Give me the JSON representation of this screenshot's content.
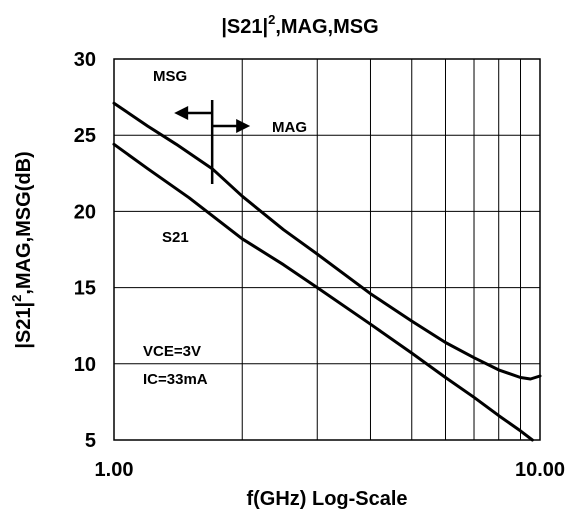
{
  "chart_data": {
    "type": "line",
    "title": {
      "prefix": "|S21|",
      "sup": "2",
      "suffix": ",MAG,MSG"
    },
    "xlabel": "f(GHz) Log-Scale",
    "ylabel": {
      "prefix": "|S21|",
      "sup": "2",
      "suffix": ",MAG,MSG(dB)"
    },
    "x_scale": "log",
    "xlim": [
      1,
      10
    ],
    "ylim": [
      5,
      30
    ],
    "x_tick_labels": [
      {
        "value": 1,
        "label": "1.00"
      },
      {
        "value": 10,
        "label": "10.00"
      }
    ],
    "y_ticks": [
      5,
      10,
      15,
      20,
      25,
      30
    ],
    "grid": true,
    "series": [
      {
        "name": "MSG",
        "points": [
          [
            1.0,
            27.1
          ],
          [
            1.2,
            25.6
          ],
          [
            1.4,
            24.4
          ],
          [
            1.6,
            23.3
          ],
          [
            1.7,
            22.8
          ]
        ]
      },
      {
        "name": "MAG",
        "points": [
          [
            1.7,
            22.8
          ],
          [
            2.0,
            21.0
          ],
          [
            2.5,
            18.8
          ],
          [
            3.0,
            17.2
          ],
          [
            4.0,
            14.6
          ],
          [
            5.0,
            12.8
          ],
          [
            6.0,
            11.4
          ],
          [
            7.0,
            10.4
          ],
          [
            8.0,
            9.6
          ],
          [
            9.0,
            9.1
          ],
          [
            9.5,
            9.0
          ],
          [
            10.0,
            9.2
          ]
        ]
      },
      {
        "name": "S21",
        "points": [
          [
            1.0,
            24.4
          ],
          [
            1.2,
            22.8
          ],
          [
            1.5,
            20.9
          ],
          [
            2.0,
            18.2
          ],
          [
            2.5,
            16.5
          ],
          [
            3.0,
            15.0
          ],
          [
            4.0,
            12.6
          ],
          [
            5.0,
            10.7
          ],
          [
            6.0,
            9.1
          ],
          [
            7.0,
            7.8
          ],
          [
            8.0,
            6.6
          ],
          [
            9.0,
            5.6
          ],
          [
            9.6,
            5.0
          ]
        ]
      }
    ],
    "annotations": {
      "msg_label": "MSG",
      "mag_label": "MAG",
      "s21_label": "S21",
      "condition_1": "VCE=3V",
      "condition_2": "IC=33mA",
      "boundary_x": 1.7
    },
    "colors": {
      "line": "#000000",
      "grid": "#000000",
      "background": "#ffffff"
    }
  }
}
